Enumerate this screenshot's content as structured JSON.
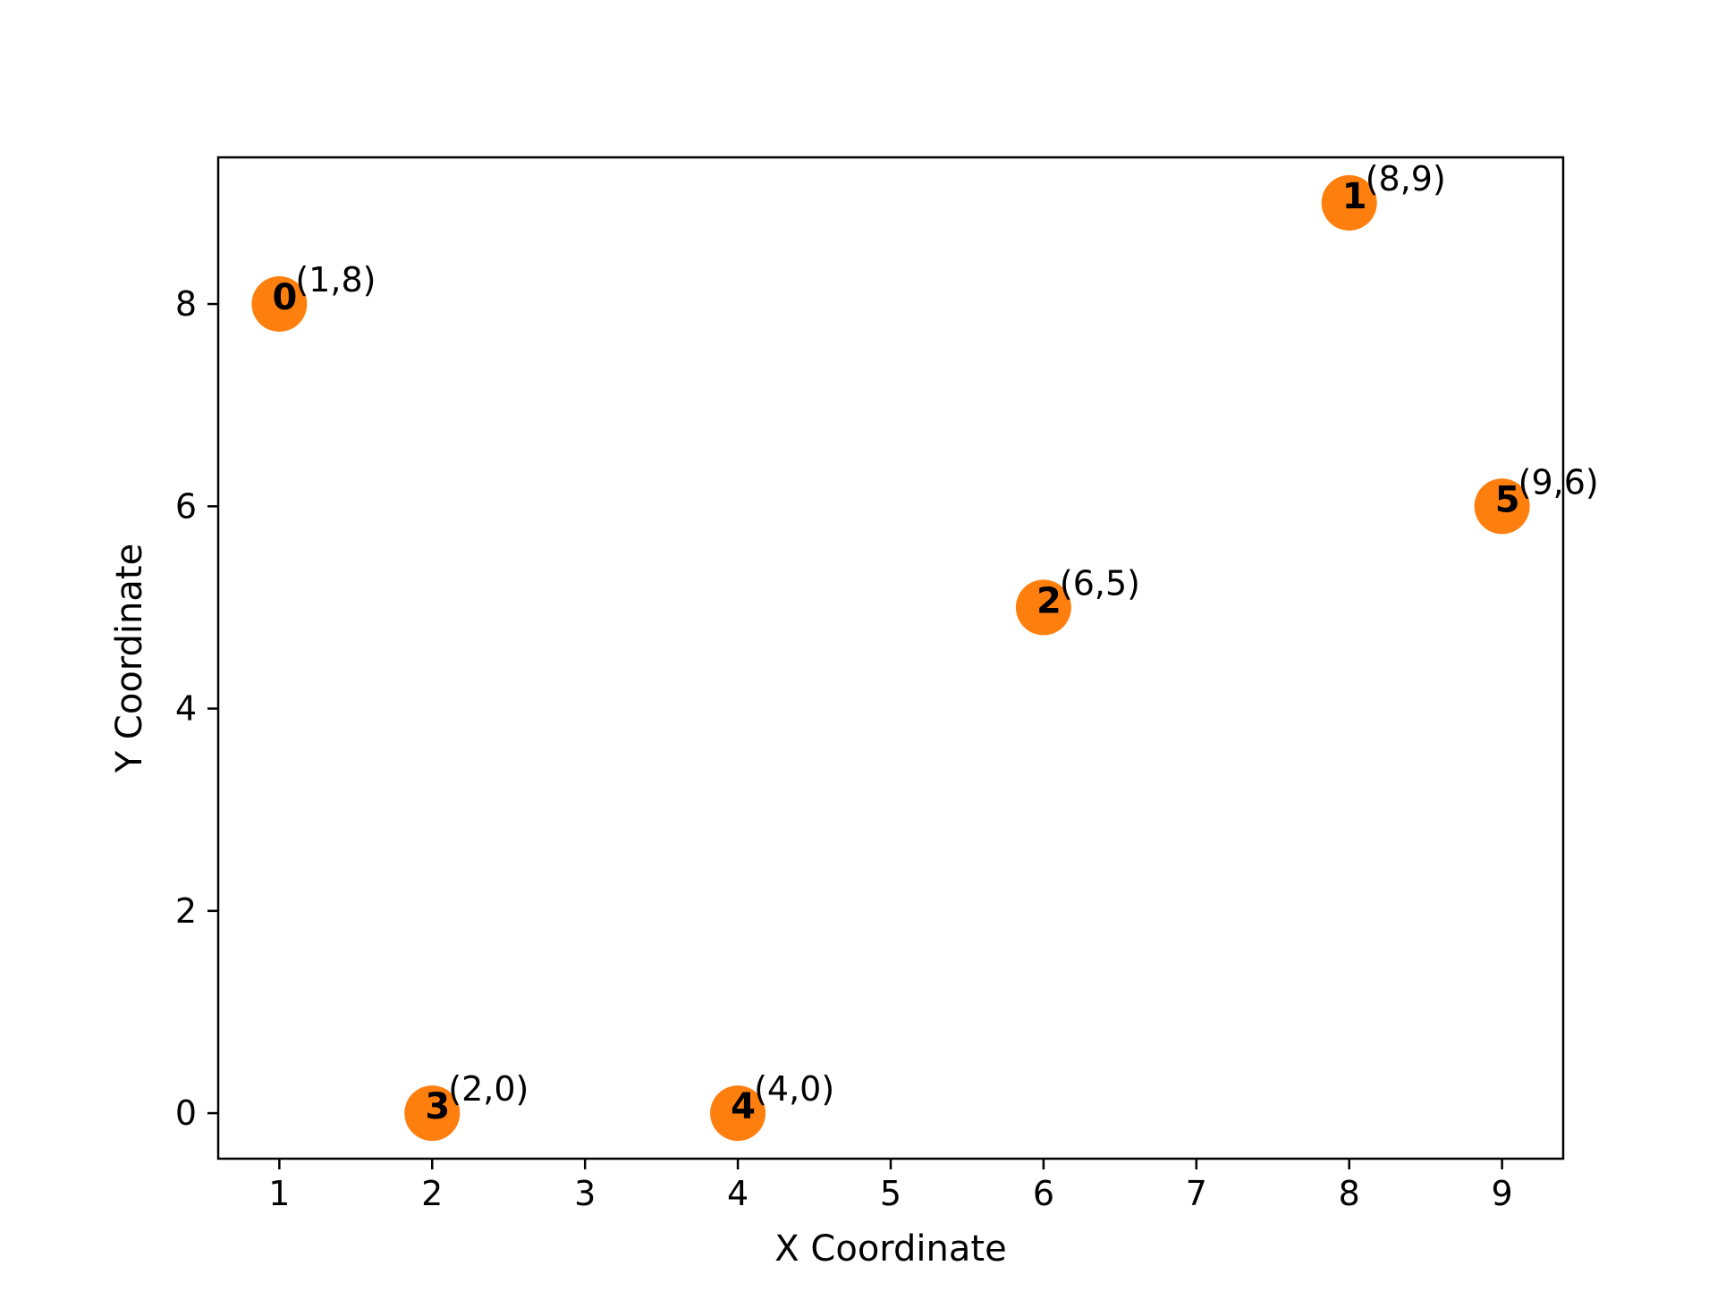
{
  "chart_data": {
    "type": "scatter",
    "title": "",
    "xlabel": "X Coordinate",
    "ylabel": "Y Coordinate",
    "xlim": [
      0.6,
      9.4
    ],
    "ylim": [
      -0.45,
      9.45
    ],
    "xticks": [
      1,
      2,
      3,
      4,
      5,
      6,
      7,
      8,
      9
    ],
    "yticks": [
      0,
      2,
      4,
      6,
      8
    ],
    "grid": false,
    "legend": "none",
    "marker_color": "#ff7f0e",
    "points": [
      {
        "id": "0",
        "x": 1,
        "y": 8,
        "label": "(1,8)"
      },
      {
        "id": "1",
        "x": 8,
        "y": 9,
        "label": "(8,9)"
      },
      {
        "id": "2",
        "x": 6,
        "y": 5,
        "label": "(6,5)"
      },
      {
        "id": "3",
        "x": 2,
        "y": 0,
        "label": "(2,0)"
      },
      {
        "id": "4",
        "x": 4,
        "y": 0,
        "label": "(4,0)"
      },
      {
        "id": "5",
        "x": 9,
        "y": 6,
        "label": "(9,6)"
      }
    ]
  }
}
